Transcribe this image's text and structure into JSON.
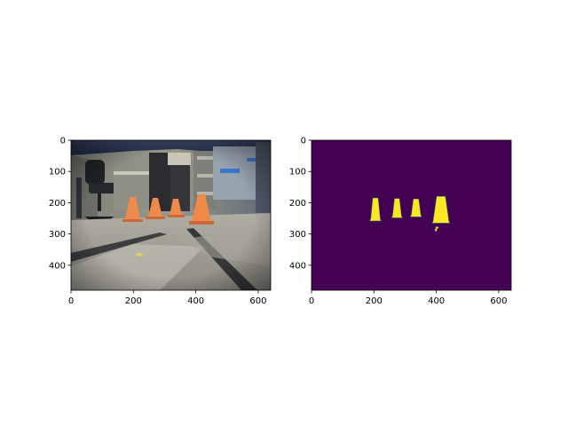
{
  "chart_data": [
    {
      "type": "image",
      "content": "camera-photo",
      "scene": "hallway floor with four orange traffic cones",
      "image_width": 640,
      "image_height": 480,
      "xlim": [
        0,
        640
      ],
      "ylim": [
        480,
        0
      ],
      "xticks": [
        0,
        200,
        400,
        600
      ],
      "yticks": [
        0,
        100,
        200,
        300,
        400
      ],
      "xtick_labels": [
        "0",
        "200",
        "400",
        "600"
      ],
      "ytick_labels": [
        "0",
        "100",
        "200",
        "300",
        "400"
      ],
      "title": "",
      "xlabel": "",
      "ylabel": "",
      "colors": {
        "cone": "#f08a4b",
        "floor": "#9c9a8e",
        "wall": "#6f7470",
        "ceiling": "#2c3550"
      }
    },
    {
      "type": "heatmap",
      "content": "binary-segmentation-mask",
      "image_width": 640,
      "image_height": 480,
      "xlim": [
        0,
        640
      ],
      "ylim": [
        480,
        0
      ],
      "xticks": [
        0,
        200,
        400,
        600
      ],
      "yticks": [
        0,
        100,
        200,
        300,
        400
      ],
      "xtick_labels": [
        "0",
        "200",
        "400",
        "600"
      ],
      "ytick_labels": [
        "0",
        "100",
        "200",
        "300",
        "400"
      ],
      "title": "",
      "xlabel": "",
      "ylabel": "",
      "colormap": "viridis",
      "colors": {
        "background": "#440154",
        "foreground": "#fde725",
        "edge": "#35b779"
      },
      "regions": [
        {
          "label": "cone",
          "x_range": [
            190,
            220
          ],
          "y_range": [
            185,
            258
          ]
        },
        {
          "label": "cone",
          "x_range": [
            260,
            288
          ],
          "y_range": [
            187,
            248
          ]
        },
        {
          "label": "cone",
          "x_range": [
            320,
            350
          ],
          "y_range": [
            188,
            245
          ]
        },
        {
          "label": "cone",
          "x_range": [
            390,
            440
          ],
          "y_range": [
            180,
            265
          ]
        },
        {
          "label": "fragment",
          "x_range": [
            395,
            408
          ],
          "y_range": [
            276,
            292
          ]
        }
      ]
    }
  ]
}
